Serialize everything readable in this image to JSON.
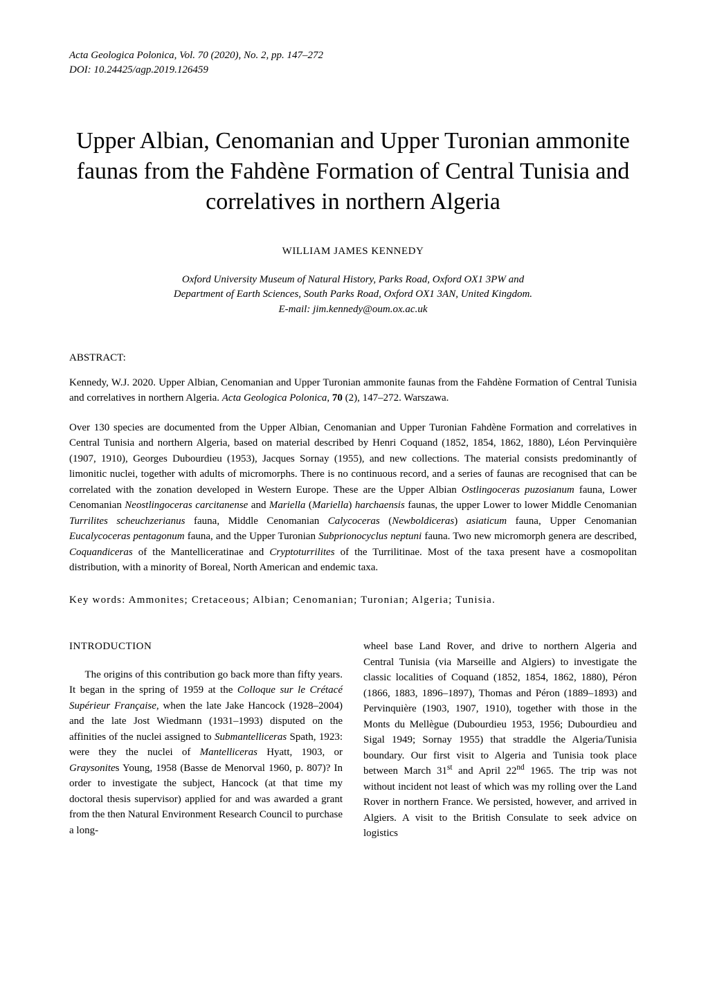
{
  "journal": {
    "line1_prefix_italic": "Acta Geologica Polonica",
    "line1_rest": ", Vol. 70 (2020), No. 2, pp. 147–272",
    "doi": "DOI: 10.24425/agp.2019.126459"
  },
  "title": "Upper Albian, Cenomanian and Upper Turonian ammonite faunas from the Fahdène Formation of Central Tunisia and correlatives in northern Algeria",
  "author": "WILLIAM JAMES KENNEDY",
  "affiliation_lines": [
    "Oxford University Museum of Natural History, Parks Road, Oxford OX1 3PW and",
    "Department of Earth Sciences, South Parks Road, Oxford OX1 3AN, United Kingdom.",
    "E-mail: jim.kennedy@oum.ox.ac.uk"
  ],
  "abstract_label": "ABSTRACT:",
  "citation_html": "Kennedy, W.J. 2020. Upper Albian, Cenomanian and Upper Turonian ammonite faunas from the Fahdène Formation of Central Tunisia and correlatives in northern Algeria. <span class=\"italic\">Acta Geologica Polonica</span>, <b>70</b> (2), 147–272. Warszawa.",
  "abstract_html": "Over 130 species are documented from the Upper Albian, Cenomanian and Upper Turonian Fahdène Formation and correlatives in Central Tunisia and northern Algeria, based on material described by Henri Coquand (1852, 1854, 1862, 1880), Léon Pervinquière (1907, 1910), Georges Dubourdieu (1953), Jacques Sornay (1955), and new collections. The material consists predominantly of limonitic nuclei, together with adults of micromorphs. There is no continuous record, and a series of faunas are recognised that can be correlated with the zonation developed in Western Europe. These are the Upper Albian <span class=\"italic\">Ostlingoceras puzosianum</span> fauna, Lower Cenomanian <span class=\"italic\">Neostlingoceras carcitanense</span> and <span class=\"italic\">Mariella</span> (<span class=\"italic\">Mariella</span>) <span class=\"italic\">harchaensis</span> faunas, the upper Lower to lower Middle Cenomanian <span class=\"italic\">Turrilites scheuchzerianus</span> fauna, Middle Cenomanian <span class=\"italic\">Calycoceras</span> (<span class=\"italic\">Newboldiceras</span>) <span class=\"italic\">asiaticum</span> fauna, Upper Cenomanian <span class=\"italic\">Eucalycoceras pentagonum</span> fauna, and the Upper Turonian <span class=\"italic\">Subprionocyclus neptuni</span> fauna. Two new micromorph genera are described, <span class=\"italic\">Coquandiceras</span> of the Mantelliceratinae and <span class=\"italic\">Cryptoturrilites</span> of the Turrilitinae. Most of the taxa present have a cosmopolitan distribution, with a minority of Boreal, North American and endemic taxa.",
  "keywords_label": "Key words:",
  "keywords_body": " Ammonites; Cretaceous; Albian; Cenomanian; Turonian; Algeria; Tunisia.",
  "intro_heading": "INTRODUCTION",
  "col_left_html": "The origins of this contribution go back more than fifty years. It began in the spring of 1959 at the <span class=\"italic\">Colloque sur le Crétacé Supérieur Française</span>, when the late Jake Hancock (1928–2004) and the late Jost Wiedmann (1931–1993) disputed on the affinities of the nuclei assigned to <span class=\"italic\">Submantelliceras</span> Spath, 1923: were they the nuclei of <span class=\"italic\">Mantelliceras</span> Hyatt, 1903, or <span class=\"italic\">Graysonite</span>s Young, 1958 (Basse de Menorval 1960, p. 807)? In order to investigate the subject, Hancock (at that time my doctoral thesis supervisor) applied for and was awarded a grant from the then Natural Environment Research Council to purchase a long-",
  "col_right_html": "wheel base Land Rover, and drive to northern Algeria and Central Tunisia (via Marseille and Algiers) to investigate the classic localities of Coquand (1852, 1854, 1862, 1880), Péron (1866, 1883, 1896–1897), Thomas and Péron (1889–1893) and Pervinquière (1903, 1907, 1910), together with those in the Monts du Mellègue (Dubourdieu 1953, 1956; Dubourdieu and Sigal 1949; Sornay 1955) that straddle the Algeria/Tunisia boundary. Our first visit to Algeria and Tunisia took place between March 31<sup>st</sup> and April 22<sup>nd</sup> 1965. The trip was not without incident not least of which was my rolling over the Land Rover in northern France. We persisted, however, and arrived in Algiers. A visit to the British Consulate to seek advice on logistics"
}
